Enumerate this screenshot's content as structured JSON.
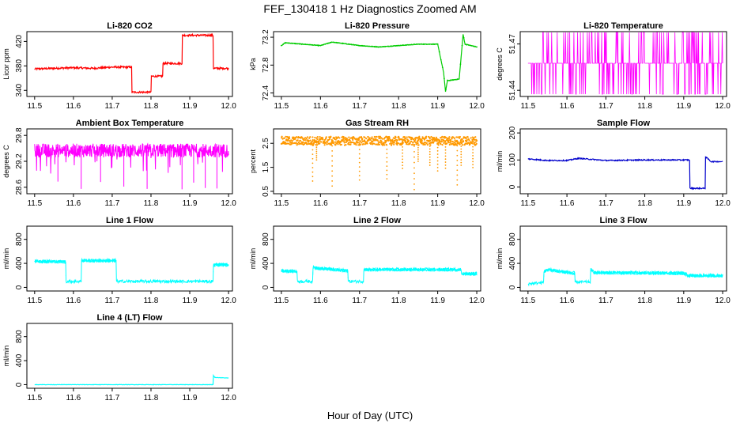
{
  "title": "FEF_130418  1 Hz Diagnostics Zoomed AM",
  "xlabel": "Hour of Day (UTC)",
  "chart_data": [
    {
      "id": "co2",
      "type": "line",
      "title": "Li-820 CO2",
      "ylabel": "Licor ppm",
      "color": "#ff0000",
      "xlim": [
        11.48,
        12.01
      ],
      "ylim": [
        330,
        436
      ],
      "xticks": [
        "11.5",
        "11.6",
        "11.7",
        "11.8",
        "11.9",
        "12.0"
      ],
      "yticks": [
        340,
        380,
        420
      ],
      "x": [
        11.5,
        11.55,
        11.6,
        11.65,
        11.7,
        11.75,
        11.751,
        11.8,
        11.801,
        11.83,
        11.831,
        11.88,
        11.881,
        11.96,
        11.961,
        12.0
      ],
      "y": [
        375,
        376,
        377,
        376,
        378,
        378,
        337,
        337,
        363,
        363,
        384,
        384,
        430,
        430,
        376,
        376
      ],
      "noise": 1.5,
      "dots": false
    },
    {
      "id": "pressure",
      "type": "line",
      "title": "Li-820 Pressure",
      "ylabel": "kPa",
      "color": "#00cc00",
      "xlim": [
        11.48,
        12.01
      ],
      "ylim": [
        72.35,
        73.28
      ],
      "xticks": [
        "11.5",
        "11.6",
        "11.7",
        "11.8",
        "11.9",
        "12.0"
      ],
      "yticks": [
        "72.4",
        "72.8",
        "73.2"
      ],
      "x": [
        11.5,
        11.51,
        11.6,
        11.63,
        11.7,
        11.75,
        11.85,
        11.9,
        11.915,
        11.92,
        11.925,
        11.93,
        11.955,
        11.965,
        11.97,
        12.0
      ],
      "y": [
        73.08,
        73.12,
        73.08,
        73.13,
        73.08,
        73.06,
        73.1,
        73.1,
        72.7,
        72.42,
        72.58,
        72.58,
        72.6,
        73.24,
        73.1,
        73.06
      ],
      "noise": 0.005,
      "dots": true
    },
    {
      "id": "licor_temp",
      "type": "line",
      "title": "Li-820 Temperature",
      "ylabel": "degrees C",
      "color": "#ff00ff",
      "xlim": [
        11.48,
        12.01
      ],
      "ylim": [
        51.436,
        51.478
      ],
      "xticks": [
        "11.5",
        "11.6",
        "11.7",
        "11.8",
        "11.9",
        "12.0"
      ],
      "yticks": [
        "51.44",
        "51.47"
      ],
      "levels": [
        51.4375,
        51.4575,
        51.4775
      ],
      "dominant": 1,
      "flip_rate": 0.45
    },
    {
      "id": "box_temp",
      "type": "line",
      "title": "Ambient Box Temperature",
      "ylabel": "degrees C",
      "color": "#ff00ff",
      "xlim": [
        11.48,
        12.01
      ],
      "ylim": [
        28.45,
        29.95
      ],
      "xticks": [
        "11.5",
        "11.6",
        "11.7",
        "11.8",
        "11.9",
        "12.0"
      ],
      "yticks": [
        "28.6",
        "29.2",
        "29.8"
      ],
      "mean": 29.45,
      "spread": 0.16,
      "dips": [
        11.56,
        11.62,
        11.67,
        11.73,
        11.79,
        11.88,
        11.91,
        11.94,
        11.97
      ],
      "dip_min": 28.55
    },
    {
      "id": "rh",
      "type": "scatter",
      "title": "Gas Stream RH",
      "ylabel": "percent",
      "color": "#ff9900",
      "xlim": [
        11.48,
        12.01
      ],
      "ylim": [
        0.4,
        3.1
      ],
      "xticks": [
        "11.5",
        "11.6",
        "11.7",
        "11.8",
        "11.9",
        "12.0"
      ],
      "yticks": [
        "0.5",
        "1.5",
        "2.5"
      ],
      "mean": 2.6,
      "spread": 0.18,
      "dips": [
        11.58,
        11.59,
        11.63,
        11.7,
        11.77,
        11.81,
        11.84,
        11.85,
        11.88,
        11.9,
        11.92,
        11.95,
        11.96,
        11.99
      ],
      "dip_min": 0.5
    },
    {
      "id": "sample_flow",
      "type": "line",
      "title": "Sample Flow",
      "ylabel": "ml/min",
      "color": "#0000cc",
      "xlim": [
        11.48,
        12.01
      ],
      "ylim": [
        -25,
        215
      ],
      "xticks": [
        "11.5",
        "11.6",
        "11.7",
        "11.8",
        "11.9",
        "12.0"
      ],
      "yticks": [
        0,
        100,
        200
      ],
      "x": [
        11.5,
        11.55,
        11.6,
        11.63,
        11.7,
        11.8,
        11.915,
        11.916,
        11.955,
        11.956,
        11.97,
        12.0
      ],
      "y": [
        104,
        98,
        98,
        106,
        98,
        100,
        100,
        -5,
        -5,
        112,
        94,
        94
      ],
      "noise": 2,
      "dots": false
    },
    {
      "id": "line1",
      "type": "line",
      "title": "Line 1 Flow",
      "ylabel": "ml/min",
      "color": "#00ffff",
      "xlim": [
        11.48,
        12.01
      ],
      "ylim": [
        -60,
        1020
      ],
      "xticks": [
        "11.5",
        "11.6",
        "11.7",
        "11.8",
        "11.9",
        "12.0"
      ],
      "yticks": [
        0,
        400,
        800
      ],
      "x": [
        11.5,
        11.58,
        11.581,
        11.62,
        11.621,
        11.71,
        11.711,
        11.96,
        11.961,
        12.0
      ],
      "y": [
        440,
        430,
        100,
        100,
        450,
        450,
        100,
        100,
        380,
        380
      ],
      "noise": 25,
      "dots": false
    },
    {
      "id": "line2",
      "type": "line",
      "title": "Line 2 Flow",
      "ylabel": "ml/min",
      "color": "#00ffff",
      "xlim": [
        11.48,
        12.01
      ],
      "ylim": [
        -60,
        1020
      ],
      "xticks": [
        "11.5",
        "11.6",
        "11.7",
        "11.8",
        "11.9",
        "12.0"
      ],
      "yticks": [
        0,
        400,
        800
      ],
      "x": [
        11.5,
        11.54,
        11.541,
        11.58,
        11.581,
        11.67,
        11.671,
        11.71,
        11.711,
        11.96,
        11.961,
        12.0
      ],
      "y": [
        280,
        270,
        100,
        100,
        330,
        280,
        100,
        100,
        300,
        300,
        230,
        230
      ],
      "noise": 25,
      "dots": false
    },
    {
      "id": "line3",
      "type": "line",
      "title": "Line 3 Flow",
      "ylabel": "ml/min",
      "color": "#00ffff",
      "xlim": [
        11.48,
        12.01
      ],
      "ylim": [
        -60,
        1020
      ],
      "xticks": [
        "11.5",
        "11.6",
        "11.7",
        "11.8",
        "11.9",
        "12.0"
      ],
      "yticks": [
        0,
        400,
        800
      ],
      "x": [
        11.5,
        11.54,
        11.541,
        11.55,
        11.62,
        11.621,
        11.66,
        11.661,
        11.67,
        11.9,
        11.91,
        12.0
      ],
      "y": [
        60,
        80,
        260,
        300,
        240,
        90,
        90,
        300,
        250,
        240,
        200,
        200
      ],
      "noise": 25,
      "dots": false
    },
    {
      "id": "line4",
      "type": "line",
      "title": "Line 4 (LT) Flow",
      "ylabel": "ml/min",
      "color": "#00ffff",
      "xlim": [
        11.48,
        12.01
      ],
      "ylim": [
        -60,
        1020
      ],
      "xticks": [
        "11.5",
        "11.6",
        "11.7",
        "11.8",
        "11.9",
        "12.0"
      ],
      "yticks": [
        0,
        400,
        800
      ],
      "x": [
        11.5,
        11.96,
        11.961,
        11.965,
        12.0
      ],
      "y": [
        0,
        0,
        150,
        120,
        110
      ],
      "noise": 3,
      "dots": false
    }
  ]
}
